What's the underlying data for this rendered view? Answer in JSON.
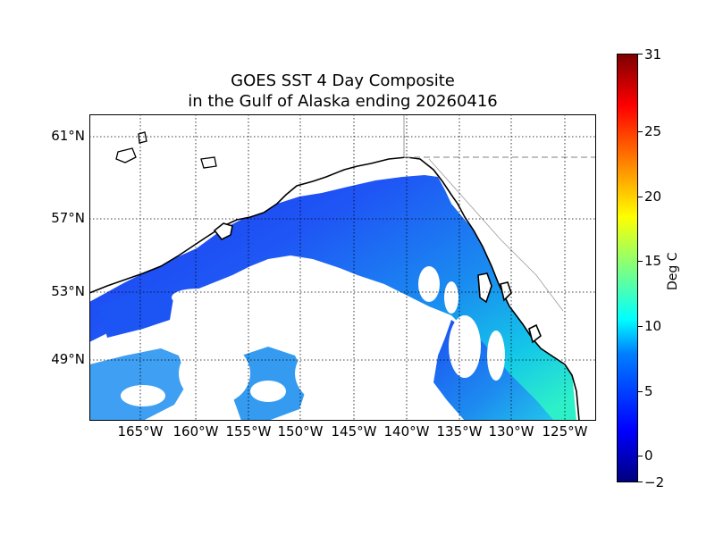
{
  "title": {
    "line1": "GOES SST 4 Day Composite",
    "line2": "in the Gulf of Alaska ending 20260416"
  },
  "map": {
    "lat_labels": [
      "61°N",
      "57°N",
      "53°N",
      "49°N"
    ],
    "lon_labels": [
      "165°W",
      "160°W",
      "155°W",
      "150°W",
      "145°W",
      "140°W",
      "135°W",
      "130°W",
      "125°W"
    ],
    "colors": {
      "coastline": "#000000",
      "grid": "#000000",
      "border": "#9a9a9a",
      "background": "#ffffff"
    }
  },
  "colorbar": {
    "label": "Deg C",
    "min": -2,
    "max": 31,
    "tick_labels": [
      "31",
      "25",
      "20",
      "15",
      "10",
      "5",
      "0",
      "−2"
    ],
    "colormap": "jet"
  }
}
